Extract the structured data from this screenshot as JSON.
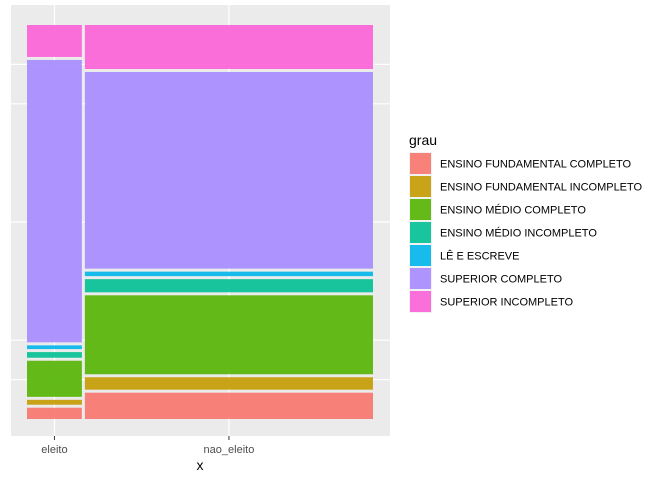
{
  "chart_data": {
    "type": "mosaic",
    "xlabel": "x",
    "ylabel": "",
    "categories": [
      "eleito",
      "nao_eleito"
    ],
    "column_share": [
      0.16,
      0.84
    ],
    "grid": true,
    "legend": {
      "title": "grau",
      "placement": "right"
    },
    "series": [
      {
        "name": "ENSINO FUNDAMENTAL COMPLETO",
        "color": "#F8766D",
        "values": [
          0.03,
          0.07
        ]
      },
      {
        "name": "ENSINO FUNDAMENTAL INCOMPLETO",
        "color": "#C49A00",
        "values": [
          0.013,
          0.033
        ]
      },
      {
        "name": "ENSINO MÉDIO COMPLETO",
        "color": "#53B400",
        "values": [
          0.096,
          0.21
        ]
      },
      {
        "name": "ENSINO MÉDIO INCOMPLETO",
        "color": "#00C094",
        "values": [
          0.015,
          0.035
        ]
      },
      {
        "name": "LÊ E ESCREVE",
        "color": "#00B6EB",
        "values": [
          0.01,
          0.012
        ]
      },
      {
        "name": "SUPERIOR COMPLETO",
        "color": "#A58AFF",
        "values": [
          0.751,
          0.523
        ]
      },
      {
        "name": "SUPERIOR INCOMPLETO",
        "color": "#FB61D7",
        "values": [
          0.085,
          0.117
        ]
      }
    ]
  }
}
